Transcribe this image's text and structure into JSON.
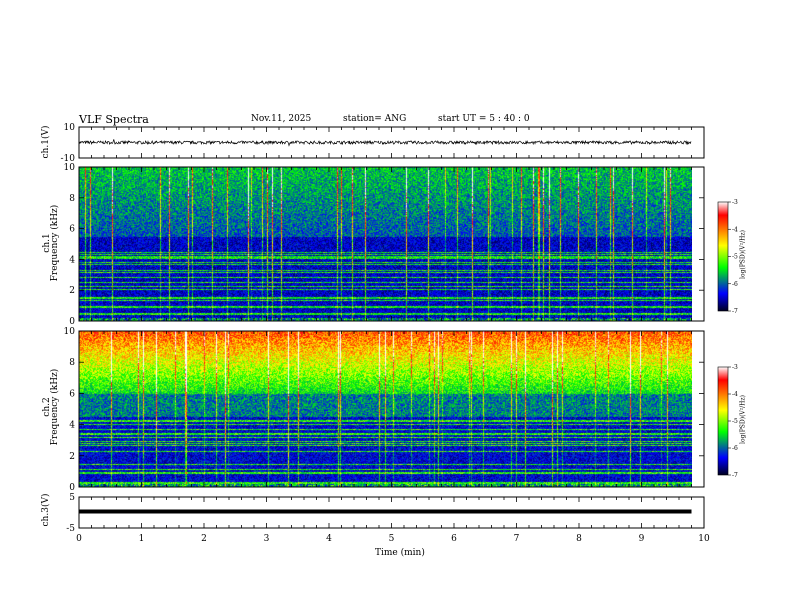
{
  "header": {
    "title": "VLF Spectra",
    "date": "Nov.11, 2025",
    "station": "station= ANG",
    "start": "start  UT =   5 : 40 : 0"
  },
  "panels": {
    "ch1_wave": {
      "ylabel": "ch.1(V)",
      "ymin_label": "-10",
      "ymax_label": "10"
    },
    "ch1_spec": {
      "ylabel_a": "ch.1",
      "ylabel_b": "Frequency (kHz)"
    },
    "ch2_spec": {
      "ylabel_a": "ch.2",
      "ylabel_b": "Frequency (kHz)"
    },
    "ch3_wave": {
      "ylabel": "ch.3(V)",
      "ymin_label": "-5",
      "ymax_label": "5"
    }
  },
  "colorbar": {
    "label": "log(PSD)(V²/Hz)",
    "ticks": [
      "-3",
      "-4",
      "-5",
      "-6",
      "-7"
    ],
    "colors": [
      "#ffffff",
      "#ff0000",
      "#ffff00",
      "#00ff00",
      "#0000ff",
      "#000020"
    ]
  },
  "chart_data": [
    {
      "type": "line",
      "name": "ch1-waveform",
      "title": "VLF Spectra",
      "xlabel": "Time (min)",
      "ylabel": "ch.1(V)",
      "xlim": [
        0,
        10
      ],
      "ylim": [
        -10,
        10
      ],
      "y_ticks": [
        -10,
        10
      ],
      "baseline_v": 0,
      "noise_amplitude_v": 1
    },
    {
      "type": "heatmap",
      "name": "ch1-spectrogram",
      "xlabel": "Time (min)",
      "ylabel": "Frequency (kHz)",
      "xlim": [
        0,
        9.8
      ],
      "ylim": [
        0,
        10
      ],
      "y_ticks": [
        0,
        2,
        4,
        6,
        8,
        10
      ],
      "zlim": [
        -7,
        -3
      ],
      "zlabel": "log(PSD)(V²/Hz)"
    },
    {
      "type": "heatmap",
      "name": "ch2-spectrogram",
      "xlabel": "Time (min)",
      "ylabel": "Frequency (kHz)",
      "xlim": [
        0,
        9.8
      ],
      "ylim": [
        0,
        10
      ],
      "y_ticks": [
        0,
        2,
        4,
        6,
        8,
        10
      ],
      "zlim": [
        -7,
        -3
      ],
      "zlabel": "log(PSD)(V²/Hz)"
    },
    {
      "type": "line",
      "name": "ch3-waveform",
      "xlabel": "Time (min)",
      "ylabel": "ch.3(V)",
      "xlim": [
        0,
        10
      ],
      "ylim": [
        -5,
        5
      ],
      "y_ticks": [
        -5,
        5
      ],
      "baseline_v": 0
    }
  ],
  "xaxis": {
    "label": "Time (min)",
    "ticks": [
      "0",
      "1",
      "2",
      "3",
      "4",
      "5",
      "6",
      "7",
      "8",
      "9",
      "10"
    ]
  }
}
